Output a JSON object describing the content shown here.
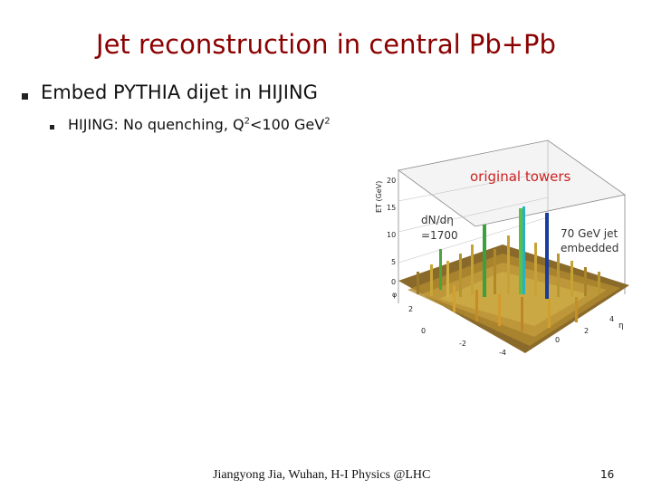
{
  "slide": {
    "title": "Jet reconstruction in central Pb+Pb",
    "bullet_1": "Embed PYTHIA dijet in HIJING",
    "bullet_2_prefix": "HIJING: No quenching, Q",
    "bullet_2_sup1": "2",
    "bullet_2_mid": "<100 GeV",
    "bullet_2_sup2": "2",
    "footer": "Jiangyong Jia, Wuhan, H-I Physics @LHC",
    "page_number": "16"
  },
  "figure": {
    "label_original": "original towers",
    "label_density_1": "dN/dη",
    "label_density_2": "=1700",
    "label_jet_1": "70 GeV jet",
    "label_jet_2": "embedded",
    "z_axis_label": "ET (GeV)",
    "z_ticks": [
      "20",
      "15",
      "10",
      "5",
      "0"
    ],
    "phi_ticks": [
      "2",
      "0"
    ],
    "eta_ticks": [
      "-4",
      "-2",
      "0",
      "2",
      "4"
    ],
    "eta_label": "η",
    "phi_label": "φ",
    "colors": {
      "title": "#8b0000",
      "label_red": "#cc2222"
    }
  }
}
